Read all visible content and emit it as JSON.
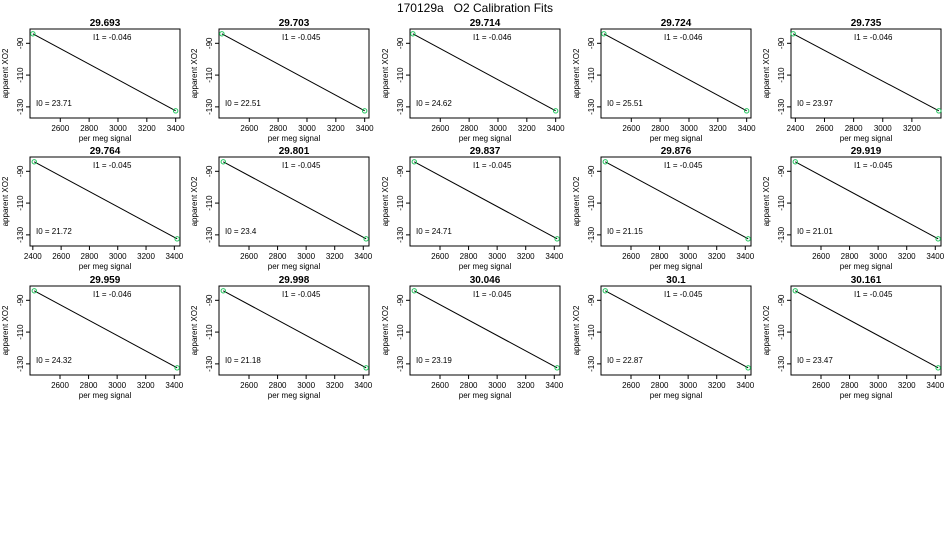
{
  "title": "170129a   O2 Calibration Fits",
  "colors": {
    "fit_line": "#000000",
    "points": "#22c55e",
    "frame": "#000000"
  },
  "chart_data": [
    {
      "type": "scatter",
      "title": "29.693",
      "xlabel": "per meg signal",
      "ylabel": "apparent XO2",
      "xticks": [
        2600,
        2800,
        3000,
        3200,
        3400
      ],
      "yticks": [
        -90,
        -110,
        -130
      ],
      "xlim": [
        2390,
        3430
      ],
      "ylim": [
        -137,
        -81
      ],
      "points": [
        [
          2410,
          -84
        ],
        [
          3400,
          -132.5
        ]
      ],
      "fit_line": [
        [
          2410,
          -84
        ],
        [
          3400,
          -132.5
        ]
      ],
      "annotations": {
        "I1": "I1 =  -0.046",
        "I0": "I0 =  23.71"
      }
    },
    {
      "type": "scatter",
      "title": "29.703",
      "xlabel": "per meg signal",
      "ylabel": "apparent XO2",
      "xticks": [
        2600,
        2800,
        3000,
        3200,
        3400
      ],
      "yticks": [
        -90,
        -110,
        -130
      ],
      "xlim": [
        2390,
        3430
      ],
      "ylim": [
        -137,
        -81
      ],
      "points": [
        [
          2410,
          -84
        ],
        [
          3400,
          -132.5
        ]
      ],
      "fit_line": [
        [
          2410,
          -84
        ],
        [
          3400,
          -132.5
        ]
      ],
      "annotations": {
        "I1": "I1 =  -0.045",
        "I0": "I0 =  22.51"
      }
    },
    {
      "type": "scatter",
      "title": "29.714",
      "xlabel": "per meg signal",
      "ylabel": "apparent XO2",
      "xticks": [
        2600,
        2800,
        3000,
        3200,
        3400
      ],
      "yticks": [
        -90,
        -110,
        -130
      ],
      "xlim": [
        2390,
        3430
      ],
      "ylim": [
        -137,
        -81
      ],
      "points": [
        [
          2410,
          -84
        ],
        [
          3400,
          -132.5
        ]
      ],
      "fit_line": [
        [
          2410,
          -84
        ],
        [
          3400,
          -132.5
        ]
      ],
      "annotations": {
        "I1": "I1 =  -0.046",
        "I0": "I0 =  24.62"
      }
    },
    {
      "type": "scatter",
      "title": "29.724",
      "xlabel": "per meg signal",
      "ylabel": "apparent XO2",
      "xticks": [
        2600,
        2800,
        3000,
        3200,
        3400
      ],
      "yticks": [
        -90,
        -110,
        -130
      ],
      "xlim": [
        2390,
        3430
      ],
      "ylim": [
        -137,
        -81
      ],
      "points": [
        [
          2410,
          -84
        ],
        [
          3400,
          -132.5
        ]
      ],
      "fit_line": [
        [
          2410,
          -84
        ],
        [
          3400,
          -132.5
        ]
      ],
      "annotations": {
        "I1": "I1 =  -0.046",
        "I0": "I0 =  25.51"
      }
    },
    {
      "type": "scatter",
      "title": "29.735",
      "xlabel": "per meg signal",
      "ylabel": "apparent XO2",
      "xticks": [
        2400,
        2600,
        2800,
        3000,
        3200
      ],
      "yticks": [
        -90,
        -110,
        -130
      ],
      "xlim": [
        2370,
        3400
      ],
      "ylim": [
        -137,
        -81
      ],
      "points": [
        [
          2385,
          -84
        ],
        [
          3385,
          -132.5
        ]
      ],
      "fit_line": [
        [
          2385,
          -84
        ],
        [
          3385,
          -132.5
        ]
      ],
      "annotations": {
        "I1": "I1 =  -0.046",
        "I0": "I0 =  23.97"
      }
    },
    {
      "type": "scatter",
      "title": "29.764",
      "xlabel": "per meg signal",
      "ylabel": "apparent XO2",
      "xticks": [
        2400,
        2600,
        2800,
        3000,
        3200,
        3400
      ],
      "yticks": [
        -90,
        -110,
        -130
      ],
      "xlim": [
        2380,
        3440
      ],
      "ylim": [
        -137,
        -81
      ],
      "points": [
        [
          2410,
          -84
        ],
        [
          3420,
          -132.5
        ]
      ],
      "fit_line": [
        [
          2410,
          -84
        ],
        [
          3420,
          -132.5
        ]
      ],
      "annotations": {
        "I1": "I1 =  -0.045",
        "I0": "I0 =  21.72"
      }
    },
    {
      "type": "scatter",
      "title": "29.801",
      "xlabel": "per meg signal",
      "ylabel": "apparent XO2",
      "xticks": [
        2600,
        2800,
        3000,
        3200,
        3400
      ],
      "yticks": [
        -90,
        -110,
        -130
      ],
      "xlim": [
        2390,
        3440
      ],
      "ylim": [
        -137,
        -81
      ],
      "points": [
        [
          2420,
          -84
        ],
        [
          3420,
          -132.5
        ]
      ],
      "fit_line": [
        [
          2420,
          -84
        ],
        [
          3420,
          -132.5
        ]
      ],
      "annotations": {
        "I1": "I1 =  -0.045",
        "I0": "I0 =  23.4"
      }
    },
    {
      "type": "scatter",
      "title": "29.837",
      "xlabel": "per meg signal",
      "ylabel": "apparent XO2",
      "xticks": [
        2600,
        2800,
        3000,
        3200,
        3400
      ],
      "yticks": [
        -90,
        -110,
        -130
      ],
      "xlim": [
        2390,
        3440
      ],
      "ylim": [
        -137,
        -81
      ],
      "points": [
        [
          2420,
          -84
        ],
        [
          3420,
          -132.5
        ]
      ],
      "fit_line": [
        [
          2420,
          -84
        ],
        [
          3420,
          -132.5
        ]
      ],
      "annotations": {
        "I1": "I1 =  -0.045",
        "I0": "I0 =  24.71"
      }
    },
    {
      "type": "scatter",
      "title": "29.876",
      "xlabel": "per meg signal",
      "ylabel": "apparent XO2",
      "xticks": [
        2600,
        2800,
        3000,
        3200,
        3400
      ],
      "yticks": [
        -90,
        -110,
        -130
      ],
      "xlim": [
        2390,
        3440
      ],
      "ylim": [
        -137,
        -81
      ],
      "points": [
        [
          2420,
          -84
        ],
        [
          3420,
          -132.5
        ]
      ],
      "fit_line": [
        [
          2420,
          -84
        ],
        [
          3420,
          -132.5
        ]
      ],
      "annotations": {
        "I1": "I1 =  -0.045",
        "I0": "I0 =  21.15"
      }
    },
    {
      "type": "scatter",
      "title": "29.919",
      "xlabel": "per meg signal",
      "ylabel": "apparent XO2",
      "xticks": [
        2600,
        2800,
        3000,
        3200,
        3400
      ],
      "yticks": [
        -90,
        -110,
        -130
      ],
      "xlim": [
        2390,
        3440
      ],
      "ylim": [
        -137,
        -81
      ],
      "points": [
        [
          2420,
          -84
        ],
        [
          3420,
          -132.5
        ]
      ],
      "fit_line": [
        [
          2420,
          -84
        ],
        [
          3420,
          -132.5
        ]
      ],
      "annotations": {
        "I1": "I1 =  -0.045",
        "I0": "I0 =  21.01"
      }
    },
    {
      "type": "scatter",
      "title": "29.959",
      "xlabel": "per meg signal",
      "ylabel": "apparent XO2",
      "xticks": [
        2600,
        2800,
        3000,
        3200,
        3400
      ],
      "yticks": [
        -90,
        -110,
        -130
      ],
      "xlim": [
        2390,
        3440
      ],
      "ylim": [
        -137,
        -81
      ],
      "points": [
        [
          2420,
          -84
        ],
        [
          3420,
          -132.5
        ]
      ],
      "fit_line": [
        [
          2420,
          -84
        ],
        [
          3420,
          -132.5
        ]
      ],
      "annotations": {
        "I1": "I1 =  -0.046",
        "I0": "I0 =  24.32"
      }
    },
    {
      "type": "scatter",
      "title": "29.998",
      "xlabel": "per meg signal",
      "ylabel": "apparent XO2",
      "xticks": [
        2600,
        2800,
        3000,
        3200,
        3400
      ],
      "yticks": [
        -90,
        -110,
        -130
      ],
      "xlim": [
        2390,
        3440
      ],
      "ylim": [
        -137,
        -81
      ],
      "points": [
        [
          2420,
          -84
        ],
        [
          3420,
          -132.5
        ]
      ],
      "fit_line": [
        [
          2420,
          -84
        ],
        [
          3420,
          -132.5
        ]
      ],
      "annotations": {
        "I1": "I1 =  -0.045",
        "I0": "I0 =  21.18"
      }
    },
    {
      "type": "scatter",
      "title": "30.046",
      "xlabel": "per meg signal",
      "ylabel": "apparent XO2",
      "xticks": [
        2600,
        2800,
        3000,
        3200,
        3400
      ],
      "yticks": [
        -90,
        -110,
        -130
      ],
      "xlim": [
        2390,
        3440
      ],
      "ylim": [
        -137,
        -81
      ],
      "points": [
        [
          2420,
          -84
        ],
        [
          3420,
          -132.5
        ]
      ],
      "fit_line": [
        [
          2420,
          -84
        ],
        [
          3420,
          -132.5
        ]
      ],
      "annotations": {
        "I1": "I1 =  -0.045",
        "I0": "I0 =  23.19"
      }
    },
    {
      "type": "scatter",
      "title": "30.1",
      "xlabel": "per meg signal",
      "ylabel": "apparent XO2",
      "xticks": [
        2600,
        2800,
        3000,
        3200,
        3400
      ],
      "yticks": [
        -90,
        -110,
        -130
      ],
      "xlim": [
        2390,
        3440
      ],
      "ylim": [
        -137,
        -81
      ],
      "points": [
        [
          2420,
          -84
        ],
        [
          3420,
          -132.5
        ]
      ],
      "fit_line": [
        [
          2420,
          -84
        ],
        [
          3420,
          -132.5
        ]
      ],
      "annotations": {
        "I1": "I1 =  -0.045",
        "I0": "I0 =  22.87"
      }
    },
    {
      "type": "scatter",
      "title": "30.161",
      "xlabel": "per meg signal",
      "ylabel": "apparent XO2",
      "xticks": [
        2600,
        2800,
        3000,
        3200,
        3400
      ],
      "yticks": [
        -90,
        -110,
        -130
      ],
      "xlim": [
        2390,
        3440
      ],
      "ylim": [
        -137,
        -81
      ],
      "points": [
        [
          2420,
          -84
        ],
        [
          3420,
          -132.5
        ]
      ],
      "fit_line": [
        [
          2420,
          -84
        ],
        [
          3420,
          -132.5
        ]
      ],
      "annotations": {
        "I1": "I1 =  -0.045",
        "I0": "I0 =  23.47"
      }
    }
  ]
}
